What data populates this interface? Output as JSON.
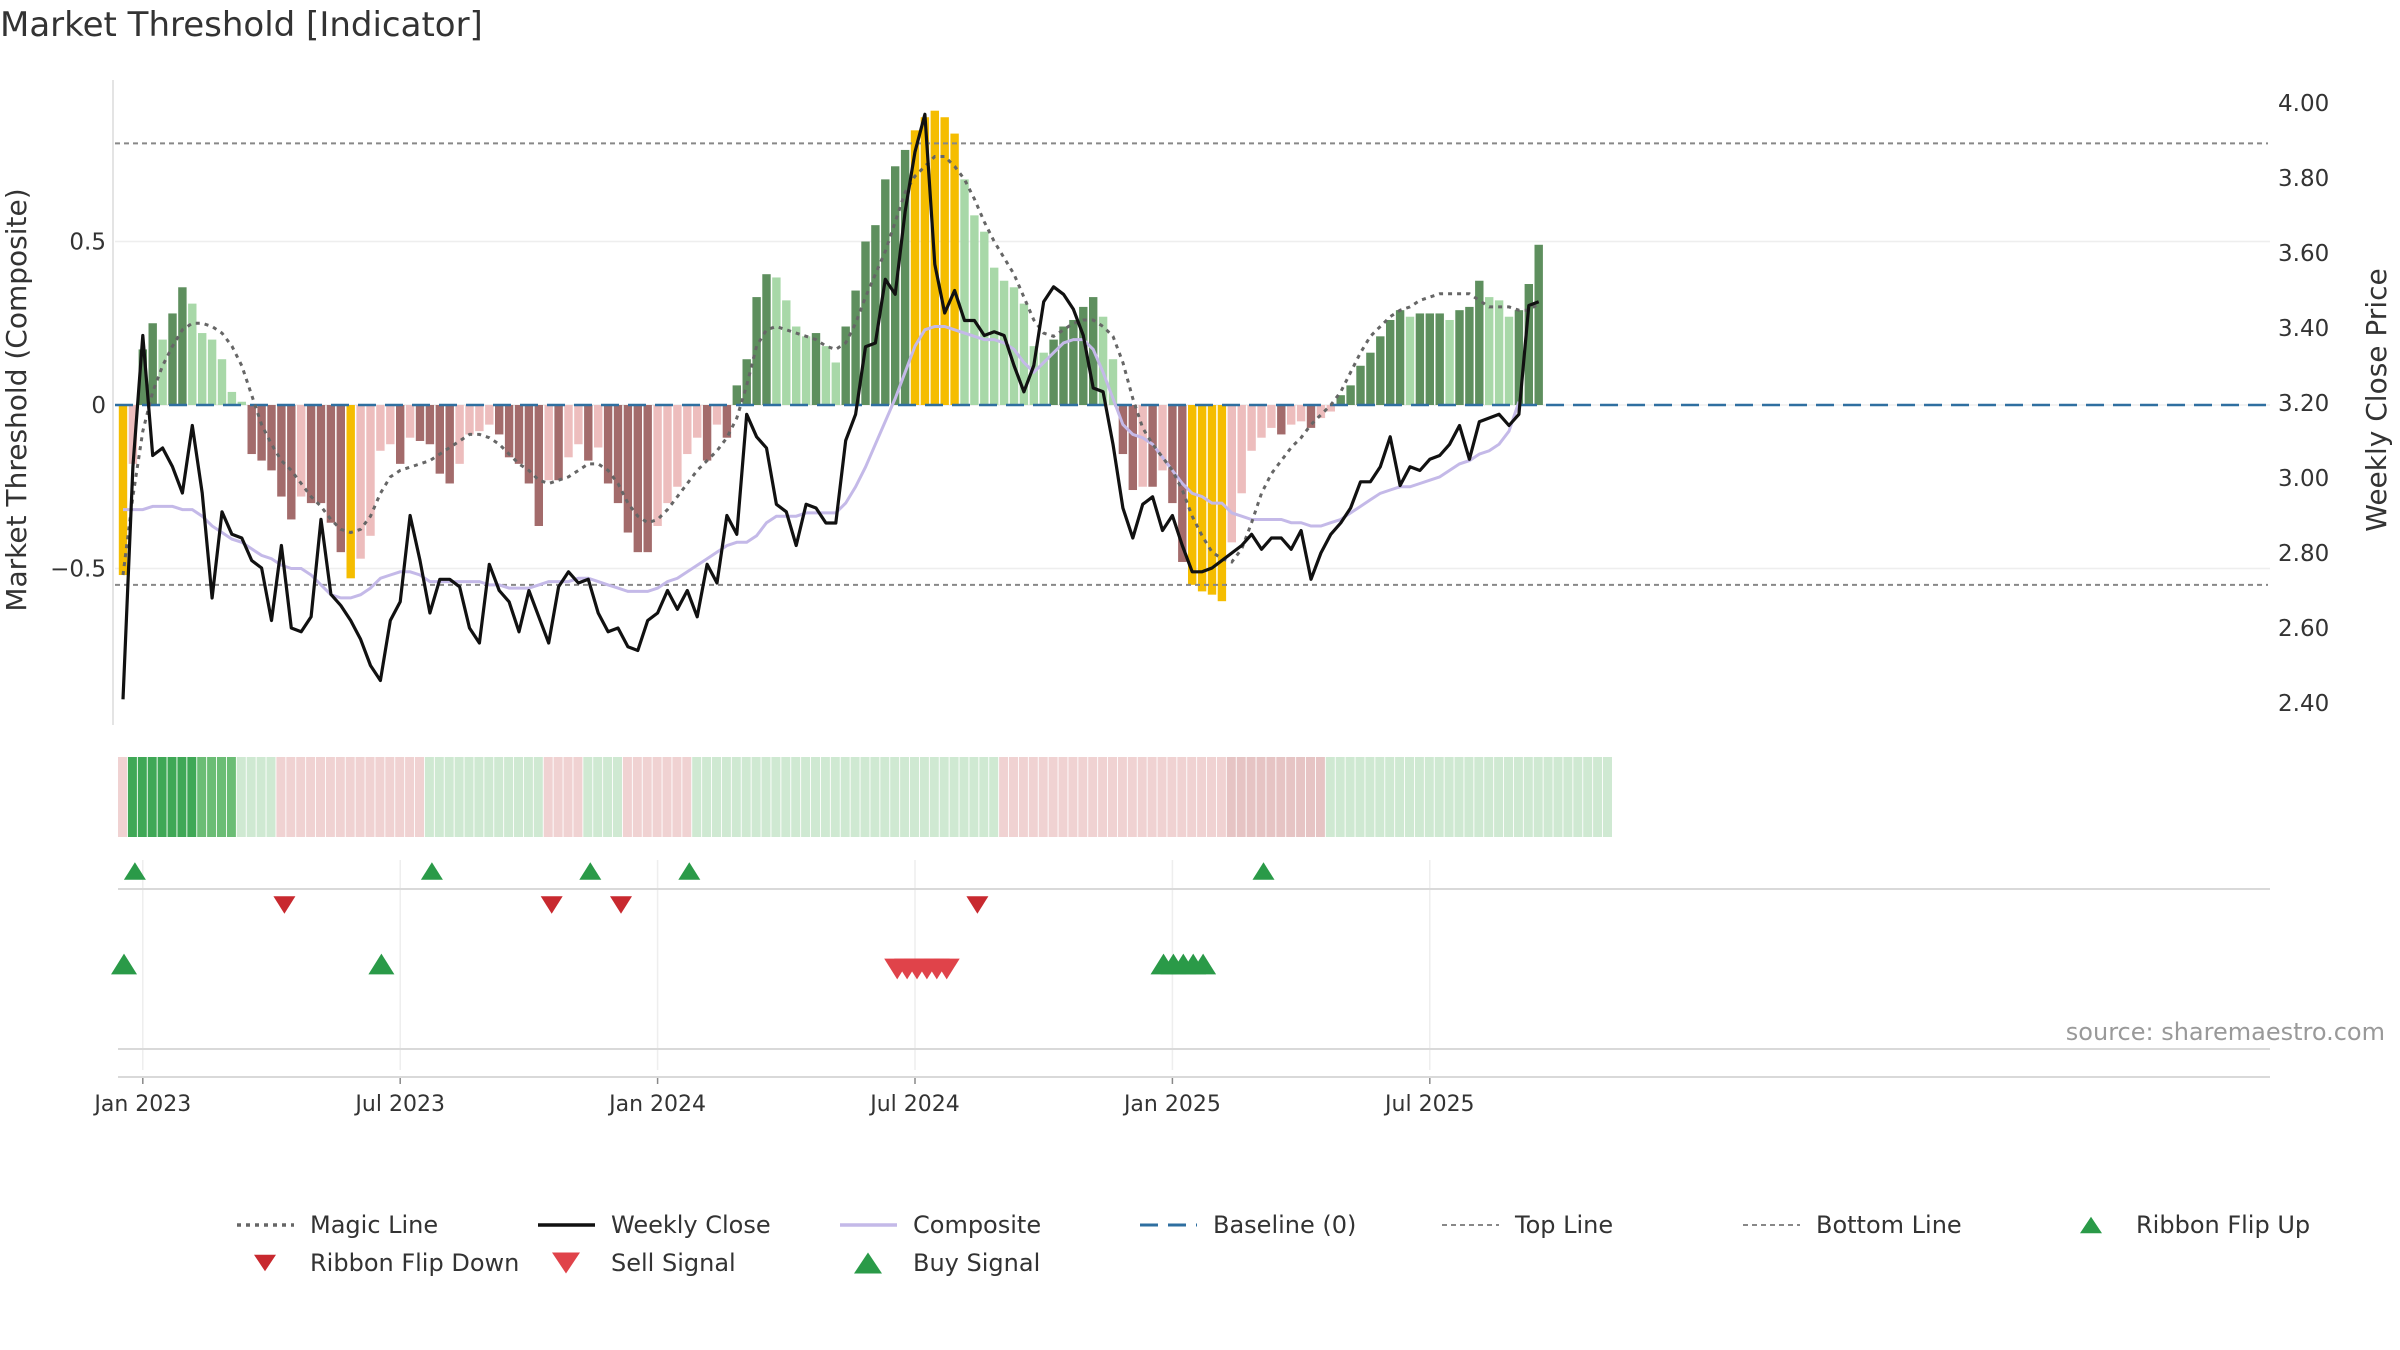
{
  "chart_data": {
    "type": "bar",
    "title": "Market Threshold [Indicator]",
    "ylabel_left": "Market Threshold (Composite)",
    "ylabel_right": "Weekly Close Price",
    "source": "source: sharemaestro.com",
    "left_axis": {
      "range": [
        -0.98,
        1.0
      ],
      "ticks": [
        0.5,
        0,
        -0.5
      ],
      "tick_labels": [
        "0.5",
        "0",
        "−0.5"
      ]
    },
    "right_axis": {
      "range": [
        2.34,
        4.04
      ],
      "ticks": [
        4.0,
        3.8,
        3.6,
        3.4,
        3.2,
        3.0,
        2.8,
        2.6,
        2.4
      ],
      "tick_labels": [
        "4.00",
        "3.80",
        "3.60",
        "3.40",
        "3.20",
        "3.00",
        "2.80",
        "2.60",
        "2.40"
      ]
    },
    "x_ticks": [
      "Jan 2023",
      "Jul 2023",
      "Jan 2024",
      "Jul 2024",
      "Jan 2025",
      "Jul 2025"
    ],
    "x_tick_weeks": [
      2,
      28,
      54,
      80,
      106,
      132
    ],
    "levels": {
      "top_line": 0.8,
      "bottom_line": -0.55,
      "baseline": 0
    },
    "colors": {
      "up_strong": "#5e8f5e",
      "up_light": "#a8d8a8",
      "down_strong": "#a36b6b",
      "down_light": "#edbdbd",
      "extreme": "#f5bd00",
      "magic": "#666666",
      "close": "#111111",
      "composite": "#c4b9e8",
      "baseline": "#2f6fa0",
      "buy": "#2a9a48",
      "sell": "#d8353b"
    },
    "composite_bars": [
      -0.52,
      -0.18,
      0.17,
      0.25,
      0.2,
      0.28,
      0.36,
      0.31,
      0.22,
      0.2,
      0.14,
      0.04,
      0.01,
      -0.15,
      -0.17,
      -0.2,
      -0.28,
      -0.35,
      -0.28,
      -0.3,
      -0.3,
      -0.36,
      -0.45,
      -0.53,
      -0.47,
      -0.4,
      -0.14,
      -0.12,
      -0.18,
      -0.1,
      -0.11,
      -0.12,
      -0.21,
      -0.24,
      -0.18,
      -0.09,
      -0.08,
      -0.06,
      -0.09,
      -0.16,
      -0.18,
      -0.24,
      -0.37,
      -0.23,
      -0.23,
      -0.16,
      -0.12,
      -0.17,
      -0.13,
      -0.24,
      -0.3,
      -0.39,
      -0.45,
      -0.45,
      -0.37,
      -0.3,
      -0.25,
      -0.15,
      -0.1,
      -0.17,
      -0.06,
      -0.1,
      0.06,
      0.14,
      0.33,
      0.4,
      0.39,
      0.32,
      0.24,
      0.21,
      0.22,
      0.18,
      0.13,
      0.24,
      0.35,
      0.5,
      0.55,
      0.69,
      0.73,
      0.78,
      0.84,
      0.88,
      0.9,
      0.88,
      0.83,
      0.69,
      0.58,
      0.53,
      0.42,
      0.38,
      0.36,
      0.31,
      0.18,
      0.16,
      0.2,
      0.24,
      0.26,
      0.3,
      0.33,
      0.27,
      0.14,
      -0.15,
      -0.26,
      -0.25,
      -0.25,
      -0.2,
      -0.3,
      -0.48,
      -0.55,
      -0.57,
      -0.58,
      -0.6,
      -0.42,
      -0.27,
      -0.14,
      -0.1,
      -0.07,
      -0.09,
      -0.06,
      -0.05,
      -0.07,
      -0.04,
      -0.02,
      0.03,
      0.06,
      0.12,
      0.16,
      0.21,
      0.26,
      0.29,
      0.27,
      0.28,
      0.28,
      0.28,
      0.26,
      0.29,
      0.3,
      0.38,
      0.33,
      0.32,
      0.27,
      0.29,
      0.37,
      0.49
    ],
    "magic_line": [
      -0.52,
      -0.28,
      -0.08,
      0.04,
      0.12,
      0.18,
      0.23,
      0.25,
      0.25,
      0.24,
      0.22,
      0.18,
      0.12,
      0.03,
      -0.06,
      -0.12,
      -0.17,
      -0.2,
      -0.24,
      -0.28,
      -0.31,
      -0.35,
      -0.38,
      -0.39,
      -0.38,
      -0.34,
      -0.27,
      -0.22,
      -0.2,
      -0.19,
      -0.18,
      -0.17,
      -0.15,
      -0.13,
      -0.11,
      -0.09,
      -0.09,
      -0.1,
      -0.12,
      -0.15,
      -0.18,
      -0.2,
      -0.23,
      -0.24,
      -0.23,
      -0.22,
      -0.2,
      -0.18,
      -0.18,
      -0.2,
      -0.24,
      -0.3,
      -0.34,
      -0.36,
      -0.35,
      -0.32,
      -0.28,
      -0.24,
      -0.2,
      -0.17,
      -0.14,
      -0.1,
      -0.04,
      0.06,
      0.18,
      0.23,
      0.24,
      0.23,
      0.22,
      0.21,
      0.2,
      0.18,
      0.17,
      0.19,
      0.25,
      0.33,
      0.4,
      0.47,
      0.56,
      0.65,
      0.7,
      0.73,
      0.76,
      0.76,
      0.73,
      0.69,
      0.63,
      0.56,
      0.5,
      0.45,
      0.4,
      0.33,
      0.26,
      0.22,
      0.21,
      0.23,
      0.25,
      0.26,
      0.26,
      0.24,
      0.21,
      0.13,
      0.02,
      -0.07,
      -0.12,
      -0.16,
      -0.2,
      -0.26,
      -0.34,
      -0.4,
      -0.45,
      -0.47,
      -0.48,
      -0.44,
      -0.36,
      -0.27,
      -0.21,
      -0.17,
      -0.13,
      -0.1,
      -0.06,
      -0.03,
      0.0,
      0.04,
      0.1,
      0.16,
      0.21,
      0.24,
      0.27,
      0.29,
      0.3,
      0.32,
      0.33,
      0.34,
      0.34,
      0.34,
      0.34,
      0.32,
      0.3,
      0.3,
      0.3,
      0.29,
      0.29,
      0.31
    ],
    "composite_line": [
      -0.32,
      -0.32,
      -0.32,
      -0.31,
      -0.31,
      -0.31,
      -0.32,
      -0.32,
      -0.34,
      -0.37,
      -0.39,
      -0.41,
      -0.42,
      -0.44,
      -0.46,
      -0.47,
      -0.49,
      -0.5,
      -0.5,
      -0.52,
      -0.55,
      -0.58,
      -0.59,
      -0.59,
      -0.58,
      -0.56,
      -0.53,
      -0.52,
      -0.51,
      -0.51,
      -0.52,
      -0.54,
      -0.54,
      -0.54,
      -0.54,
      -0.54,
      -0.54,
      -0.55,
      -0.55,
      -0.56,
      -0.56,
      -0.56,
      -0.55,
      -0.54,
      -0.54,
      -0.54,
      -0.53,
      -0.53,
      -0.54,
      -0.55,
      -0.56,
      -0.57,
      -0.57,
      -0.57,
      -0.56,
      -0.54,
      -0.53,
      -0.51,
      -0.49,
      -0.47,
      -0.45,
      -0.43,
      -0.42,
      -0.42,
      -0.4,
      -0.36,
      -0.34,
      -0.34,
      -0.34,
      -0.33,
      -0.33,
      -0.33,
      -0.33,
      -0.3,
      -0.25,
      -0.19,
      -0.12,
      -0.05,
      0.02,
      0.1,
      0.18,
      0.23,
      0.24,
      0.24,
      0.23,
      0.22,
      0.21,
      0.2,
      0.2,
      0.19,
      0.17,
      0.13,
      0.1,
      0.13,
      0.16,
      0.19,
      0.2,
      0.2,
      0.17,
      0.1,
      0.02,
      -0.06,
      -0.09,
      -0.1,
      -0.12,
      -0.16,
      -0.2,
      -0.24,
      -0.27,
      -0.28,
      -0.3,
      -0.3,
      -0.33,
      -0.34,
      -0.35,
      -0.35,
      -0.35,
      -0.35,
      -0.36,
      -0.36,
      -0.37,
      -0.37,
      -0.36,
      -0.35,
      -0.33,
      -0.31,
      -0.29,
      -0.27,
      -0.26,
      -0.25,
      -0.25,
      -0.24,
      -0.23,
      -0.22,
      -0.2,
      -0.18,
      -0.17,
      -0.15,
      -0.14,
      -0.12,
      -0.08,
      0.01
    ],
    "weekly_close": [
      2.41,
      3.03,
      3.38,
      3.06,
      3.08,
      3.03,
      2.96,
      3.14,
      2.96,
      2.68,
      2.91,
      2.85,
      2.84,
      2.78,
      2.76,
      2.62,
      2.82,
      2.6,
      2.59,
      2.63,
      2.89,
      2.69,
      2.66,
      2.62,
      2.57,
      2.5,
      2.46,
      2.62,
      2.67,
      2.9,
      2.78,
      2.64,
      2.73,
      2.73,
      2.71,
      2.6,
      2.56,
      2.77,
      2.7,
      2.67,
      2.59,
      2.7,
      2.63,
      2.56,
      2.71,
      2.75,
      2.72,
      2.73,
      2.64,
      2.59,
      2.6,
      2.55,
      2.54,
      2.62,
      2.64,
      2.7,
      2.65,
      2.7,
      2.63,
      2.77,
      2.72,
      2.9,
      2.85,
      3.17,
      3.11,
      3.08,
      2.93,
      2.91,
      2.82,
      2.93,
      2.92,
      2.88,
      2.88,
      3.1,
      3.17,
      3.35,
      3.36,
      3.53,
      3.49,
      3.71,
      3.87,
      3.97,
      3.57,
      3.44,
      3.5,
      3.42,
      3.42,
      3.38,
      3.39,
      3.38,
      3.3,
      3.23,
      3.3,
      3.47,
      3.51,
      3.49,
      3.45,
      3.38,
      3.24,
      3.23,
      3.09,
      2.92,
      2.84,
      2.93,
      2.95,
      2.86,
      2.9,
      2.82,
      2.75,
      2.75,
      2.76,
      2.78,
      2.8,
      2.82,
      2.85,
      2.81,
      2.84,
      2.84,
      2.81,
      2.86,
      2.73,
      2.8,
      2.85,
      2.88,
      2.92,
      2.99,
      2.99,
      3.03,
      3.11,
      2.98,
      3.03,
      3.02,
      3.05,
      3.06,
      3.09,
      3.14,
      3.05,
      3.15,
      3.16,
      3.17,
      3.14,
      3.17,
      3.46,
      3.47
    ],
    "ribbon": [
      -1,
      3,
      3,
      3,
      3,
      3,
      3,
      3,
      2,
      2,
      2,
      2,
      1,
      1,
      1,
      1,
      -1,
      -1,
      -1,
      -1,
      -1,
      -1,
      -1,
      -1,
      -1,
      -1,
      -1,
      -1,
      -1,
      -1,
      -1,
      1,
      1,
      1,
      1,
      1,
      1,
      1,
      1,
      1,
      1,
      1,
      1,
      -1,
      -1,
      -1,
      -1,
      1,
      1,
      1,
      1,
      -1,
      -1,
      -1,
      -1,
      -1,
      -1,
      -1,
      1,
      1,
      1,
      1,
      1,
      1,
      1,
      1,
      1,
      1,
      1,
      1,
      1,
      1,
      1,
      1,
      1,
      1,
      1,
      1,
      1,
      1,
      1,
      1,
      1,
      1,
      1,
      1,
      1,
      1,
      1,
      -1,
      -1,
      -1,
      -1,
      -1,
      -1,
      -1,
      -1,
      -1,
      -1,
      -1,
      -1,
      -1,
      -1,
      -1,
      -1,
      -1,
      -1,
      -1,
      -1,
      -1,
      -1,
      -1,
      -2,
      -2,
      -2,
      -2,
      -2,
      -2,
      -2,
      -2,
      -2,
      -2,
      1,
      1,
      1,
      1,
      1,
      1,
      1,
      1,
      1,
      1,
      1,
      1,
      1,
      1,
      1,
      1,
      1,
      1,
      1,
      1,
      1,
      1,
      1,
      1,
      1,
      1,
      1,
      1,
      1
    ],
    "ribbon_flip_up_weeks": [
      1,
      31,
      47,
      57,
      115
    ],
    "ribbon_flip_down_weeks": [
      16,
      43,
      50,
      86
    ],
    "buy_signal_weeks": [
      0,
      26,
      105,
      106,
      107,
      108,
      109
    ],
    "sell_signal_weeks": [
      78,
      79,
      80,
      81,
      82,
      83
    ],
    "legend": [
      {
        "label": "Magic Line",
        "kind": "dotted",
        "color": "#666666"
      },
      {
        "label": "Weekly Close",
        "kind": "solid",
        "color": "#111111"
      },
      {
        "label": "Composite",
        "kind": "solid",
        "color": "#c4b9e8"
      },
      {
        "label": "Baseline (0)",
        "kind": "dashed",
        "color": "#2f6fa0"
      },
      {
        "label": "Top Line",
        "kind": "dotted-thin",
        "color": "#888888"
      },
      {
        "label": "Bottom Line",
        "kind": "dotted-thin",
        "color": "#888888"
      },
      {
        "label": "Ribbon Flip Up",
        "kind": "tri-up",
        "color": "#2a9a48"
      },
      {
        "label": "Ribbon Flip Down",
        "kind": "tri-down",
        "color": "#c8292f"
      },
      {
        "label": "Sell Signal",
        "kind": "tri-down",
        "color": "#e0434a"
      },
      {
        "label": "Buy Signal",
        "kind": "tri-up",
        "color": "#2a9a48"
      }
    ]
  }
}
